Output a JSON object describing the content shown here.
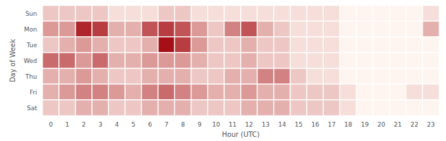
{
  "chart_data": {
    "type": "heatmap",
    "xlabel": "Hour (UTC)",
    "ylabel": "Day of Week",
    "categories": [
      "0",
      "1",
      "2",
      "3",
      "4",
      "5",
      "6",
      "7",
      "8",
      "9",
      "10",
      "11",
      "12",
      "13",
      "14",
      "15",
      "16",
      "17",
      "18",
      "19",
      "20",
      "21",
      "22",
      "23"
    ],
    "rows": [
      "Sun",
      "Mon",
      "Tue",
      "Wed",
      "Thu",
      "Fri",
      "Sat"
    ],
    "values": [
      [
        2,
        2,
        2,
        2,
        1,
        1,
        1,
        2,
        2,
        1,
        1,
        1,
        1,
        1,
        1,
        1,
        1,
        1,
        0,
        0,
        0,
        0,
        0,
        1
      ],
      [
        4,
        4,
        9,
        8,
        3,
        3,
        7,
        8,
        7,
        4,
        2,
        5,
        7,
        3,
        2,
        1,
        1,
        1,
        0,
        0,
        0,
        0,
        0,
        3
      ],
      [
        2,
        3,
        4,
        3,
        2,
        2,
        3,
        10,
        8,
        4,
        2,
        2,
        3,
        2,
        2,
        1,
        1,
        1,
        0,
        0,
        0,
        0,
        0,
        0
      ],
      [
        6,
        6,
        4,
        6,
        3,
        3,
        4,
        4,
        4,
        3,
        2,
        2,
        3,
        2,
        2,
        1,
        1,
        1,
        0,
        0,
        0,
        0,
        0,
        0
      ],
      [
        3,
        3,
        4,
        3,
        2,
        2,
        3,
        3,
        3,
        2,
        2,
        3,
        3,
        5,
        5,
        2,
        1,
        1,
        0,
        0,
        0,
        0,
        0,
        0
      ],
      [
        3,
        4,
        5,
        5,
        4,
        3,
        5,
        6,
        5,
        4,
        3,
        3,
        4,
        3,
        3,
        2,
        2,
        2,
        1,
        0,
        0,
        0,
        1,
        1
      ],
      [
        2,
        2,
        3,
        3,
        2,
        2,
        3,
        3,
        3,
        2,
        2,
        2,
        3,
        3,
        3,
        2,
        2,
        2,
        1,
        0,
        0,
        0,
        0,
        0
      ]
    ],
    "color_range": [
      0,
      10
    ],
    "color": "#a50f15",
    "grid": true
  }
}
